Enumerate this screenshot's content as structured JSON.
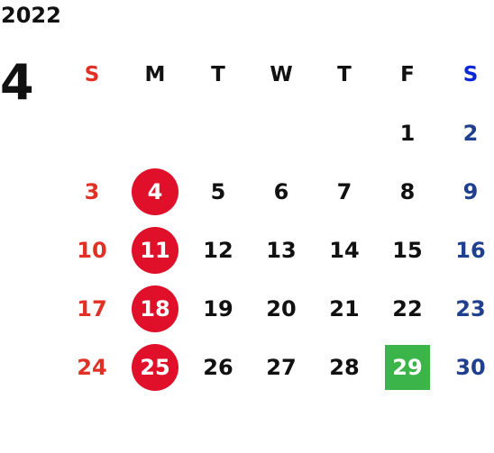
{
  "calendar": {
    "year": "2022",
    "month": "4",
    "weekdays": [
      "S",
      "M",
      "T",
      "W",
      "T",
      "F",
      "S"
    ],
    "weeks": [
      [
        "",
        "",
        "",
        "",
        "",
        "1",
        "2"
      ],
      [
        "3",
        "4",
        "5",
        "6",
        "7",
        "8",
        "9"
      ],
      [
        "10",
        "11",
        "12",
        "13",
        "14",
        "15",
        "16"
      ],
      [
        "17",
        "18",
        "19",
        "20",
        "21",
        "22",
        "23"
      ],
      [
        "24",
        "25",
        "26",
        "27",
        "28",
        "29",
        "30"
      ]
    ],
    "colors": {
      "sunday": "#e03126",
      "saturday": "#1f3f8f",
      "saturday_header": "#0a28d6",
      "holiday_circle": "#e0102a",
      "marked_square": "#3bb54a"
    }
  }
}
